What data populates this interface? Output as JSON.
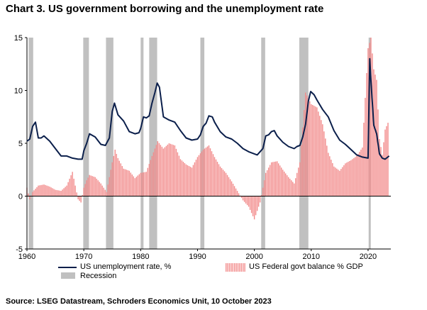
{
  "title": "Chart 3. US government borrowing and the unemployment rate",
  "source": "Source: LSEG Datastream, Schroders Economics Unit, 10 October 2023",
  "colors": {
    "unemployment_line": "#0b1f4b",
    "balance_bars": "#f28b8b",
    "recession": "#c0c0c0",
    "axis": "#000000"
  },
  "legend": {
    "unemployment": "US unemployment rate, %",
    "balance": "US Federal govt balance % GDP",
    "recession": "Recession"
  },
  "chart_data": {
    "type": "line",
    "x_range": [
      1960,
      2024
    ],
    "ylim": [
      -5,
      15
    ],
    "y_ticks": [
      "-5",
      "0",
      "5",
      "10",
      "15"
    ],
    "x_ticks": [
      "1960",
      "1970",
      "1980",
      "1990",
      "2000",
      "2010",
      "2020"
    ],
    "recessions": [
      [
        1960.3,
        1961.1
      ],
      [
        1969.9,
        1970.9
      ],
      [
        1973.9,
        1975.2
      ],
      [
        1980.0,
        1980.5
      ],
      [
        1981.5,
        1982.9
      ],
      [
        1990.5,
        1991.2
      ],
      [
        2001.2,
        2001.9
      ],
      [
        2007.9,
        2009.5
      ],
      [
        2020.1,
        2020.4
      ]
    ],
    "series": [
      {
        "name": "US unemployment rate, %",
        "kind": "line",
        "x": [
          1960,
          1960.5,
          1961,
          1961.5,
          1962,
          1962.5,
          1963,
          1964,
          1965,
          1966,
          1967,
          1968,
          1969,
          1969.7,
          1970,
          1970.5,
          1971,
          1972,
          1973,
          1973.8,
          1974.5,
          1975,
          1975.4,
          1976,
          1977,
          1978,
          1979,
          1979.7,
          1980,
          1980.5,
          1981,
          1981.5,
          1982,
          1982.5,
          1982.9,
          1983.3,
          1984,
          1985,
          1986,
          1987,
          1988,
          1989,
          1990,
          1990.5,
          1991,
          1991.5,
          1992,
          1992.6,
          1993,
          1994,
          1995,
          1996,
          1997,
          1998,
          1999,
          2000,
          2000.5,
          2001,
          2001.5,
          2002,
          2002.5,
          2003,
          2003.5,
          2004,
          2005,
          2006,
          2007,
          2007.5,
          2008,
          2008.5,
          2009,
          2009.5,
          2009.9,
          2010.5,
          2011,
          2012,
          2013,
          2014,
          2015,
          2016,
          2017,
          2018,
          2019,
          2020,
          2020.3,
          2020.5,
          2021,
          2021.5,
          2022,
          2022.5,
          2023,
          2023.7
        ],
        "values": [
          5.2,
          5.4,
          6.6,
          7.0,
          5.5,
          5.5,
          5.7,
          5.2,
          4.5,
          3.8,
          3.8,
          3.6,
          3.5,
          3.5,
          4.3,
          5.0,
          5.9,
          5.6,
          4.9,
          4.8,
          5.5,
          8.0,
          8.8,
          7.7,
          7.1,
          6.1,
          5.9,
          6.0,
          6.4,
          7.5,
          7.4,
          7.6,
          8.8,
          9.8,
          10.7,
          10.3,
          7.5,
          7.2,
          7.0,
          6.2,
          5.5,
          5.3,
          5.4,
          5.8,
          6.6,
          6.9,
          7.6,
          7.5,
          7.0,
          6.1,
          5.6,
          5.4,
          5.0,
          4.5,
          4.2,
          4.0,
          3.9,
          4.2,
          4.5,
          5.7,
          5.8,
          6.1,
          6.2,
          5.7,
          5.1,
          4.7,
          4.5,
          4.7,
          4.8,
          5.6,
          6.8,
          9.0,
          9.9,
          9.6,
          9.1,
          8.2,
          7.5,
          6.2,
          5.3,
          4.9,
          4.4,
          3.9,
          3.7,
          3.6,
          13.0,
          11.0,
          6.7,
          5.9,
          4.0,
          3.6,
          3.5,
          3.8
        ]
      },
      {
        "name": "US Federal govt balance % GDP",
        "kind": "bar",
        "x": [
          1960,
          1960.5,
          1961,
          1962,
          1963,
          1964,
          1965,
          1966,
          1967,
          1968,
          1968.5,
          1969,
          1969.5,
          1970,
          1970.5,
          1971,
          1972,
          1973,
          1974,
          1975,
          1975.5,
          1976,
          1977,
          1978,
          1979,
          1980,
          1981,
          1982,
          1983,
          1984,
          1985,
          1986,
          1987,
          1988,
          1989,
          1990,
          1991,
          1992,
          1993,
          1994,
          1995,
          1996,
          1997,
          1998,
          1999,
          2000,
          2001,
          2002,
          2003,
          2004,
          2005,
          2006,
          2007,
          2008,
          2009,
          2010,
          2011,
          2012,
          2013,
          2014,
          2015,
          2016,
          2017,
          2018,
          2019,
          2020,
          2020.5,
          2021,
          2021.5,
          2022,
          2022.5,
          2023,
          2023.7
        ],
        "values": [
          0.8,
          -0.3,
          0.4,
          1.0,
          1.1,
          0.9,
          0.6,
          0.5,
          1.0,
          2.3,
          1.0,
          -0.3,
          -0.6,
          0.8,
          1.5,
          2.0,
          1.8,
          1.2,
          0.4,
          3.2,
          4.4,
          3.6,
          2.6,
          2.4,
          1.7,
          2.2,
          2.3,
          3.8,
          5.2,
          4.5,
          5.0,
          4.8,
          3.5,
          3.0,
          2.7,
          3.7,
          4.4,
          4.8,
          3.7,
          2.8,
          2.2,
          1.4,
          0.5,
          -0.4,
          -1.0,
          -2.2,
          -0.6,
          2.2,
          3.2,
          3.3,
          2.5,
          1.8,
          1.2,
          3.2,
          9.8,
          8.7,
          8.4,
          6.8,
          4.1,
          2.8,
          2.4,
          3.1,
          3.4,
          3.8,
          4.6,
          14.0,
          15.0,
          12.0,
          11.0,
          5.4,
          3.9,
          6.3,
          7.2
        ]
      }
    ]
  }
}
